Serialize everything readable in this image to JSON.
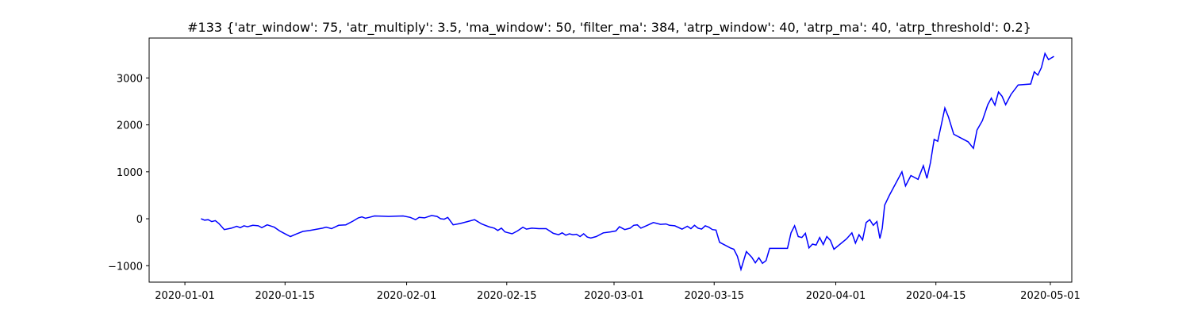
{
  "chart_data": {
    "type": "line",
    "title": "#133 {'atr_window': 75, 'atr_multiply': 3.5, 'ma_window': 50, 'filter_ma': 384, 'atrp_window': 40, 'atrp_ma': 40, 'atrp_threshold': 0.2}",
    "xlabel": "",
    "ylabel": "",
    "x_axis": {
      "type": "date",
      "range": [
        "2019-12-27",
        "2020-05-04"
      ],
      "ticks": [
        "2020-01-01",
        "2020-01-15",
        "2020-02-01",
        "2020-02-15",
        "2020-03-01",
        "2020-03-15",
        "2020-04-01",
        "2020-04-15",
        "2020-05-01"
      ]
    },
    "y_axis": {
      "range": [
        -1350,
        3850
      ],
      "ticks": [
        -1000,
        0,
        1000,
        2000,
        3000
      ]
    },
    "grid": false,
    "series": [
      {
        "color": "#0000ff",
        "points": [
          [
            "2020-01-03",
            0
          ],
          [
            "2020-01-03",
            -30
          ],
          [
            "2020-01-04",
            -20
          ],
          [
            "2020-01-04",
            -60
          ],
          [
            "2020-01-05",
            -40
          ],
          [
            "2020-01-05",
            -100
          ],
          [
            "2020-01-06",
            -230
          ],
          [
            "2020-01-07",
            -200
          ],
          [
            "2020-01-08",
            -160
          ],
          [
            "2020-01-08",
            -190
          ],
          [
            "2020-01-09",
            -150
          ],
          [
            "2020-01-09",
            -170
          ],
          [
            "2020-01-10",
            -140
          ],
          [
            "2020-01-11",
            -150
          ],
          [
            "2020-01-11",
            -190
          ],
          [
            "2020-01-12",
            -130
          ],
          [
            "2020-01-13",
            -180
          ],
          [
            "2020-01-14",
            -260
          ],
          [
            "2020-01-14",
            -300
          ],
          [
            "2020-01-15",
            -340
          ],
          [
            "2020-01-15",
            -380
          ],
          [
            "2020-01-16",
            -330
          ],
          [
            "2020-01-17",
            -270
          ],
          [
            "2020-01-18",
            -250
          ],
          [
            "2020-01-20",
            -200
          ],
          [
            "2020-01-20",
            -180
          ],
          [
            "2020-01-21",
            -210
          ],
          [
            "2020-01-22",
            -140
          ],
          [
            "2020-01-23",
            -130
          ],
          [
            "2020-01-24",
            -50
          ],
          [
            "2020-01-25",
            20
          ],
          [
            "2020-01-25",
            40
          ],
          [
            "2020-01-26",
            10
          ],
          [
            "2020-01-26",
            30
          ],
          [
            "2020-01-27",
            60
          ],
          [
            "2020-01-28",
            55
          ],
          [
            "2020-01-29",
            50
          ],
          [
            "2020-01-30",
            55
          ],
          [
            "2020-01-31",
            60
          ],
          [
            "2020-02-01",
            30
          ],
          [
            "2020-02-02",
            -20
          ],
          [
            "2020-02-02",
            30
          ],
          [
            "2020-02-03",
            20
          ],
          [
            "2020-02-04",
            70
          ],
          [
            "2020-02-05",
            50
          ],
          [
            "2020-02-05",
            0
          ],
          [
            "2020-02-06",
            -10
          ],
          [
            "2020-02-06",
            30
          ],
          [
            "2020-02-07",
            -130
          ],
          [
            "2020-02-08",
            -100
          ],
          [
            "2020-02-09",
            -60
          ],
          [
            "2020-02-10",
            -20
          ],
          [
            "2020-02-11",
            -110
          ],
          [
            "2020-02-12",
            -170
          ],
          [
            "2020-02-13",
            -200
          ],
          [
            "2020-02-13",
            -250
          ],
          [
            "2020-02-14",
            -200
          ],
          [
            "2020-02-14",
            -280
          ],
          [
            "2020-02-15",
            -300
          ],
          [
            "2020-02-15",
            -320
          ],
          [
            "2020-02-16",
            -260
          ],
          [
            "2020-02-17",
            -180
          ],
          [
            "2020-02-17",
            -220
          ],
          [
            "2020-02-18",
            -200
          ],
          [
            "2020-02-19",
            -210
          ],
          [
            "2020-02-20",
            -210
          ],
          [
            "2020-02-21",
            -310
          ],
          [
            "2020-02-22",
            -340
          ],
          [
            "2020-02-22",
            -300
          ],
          [
            "2020-02-23",
            -350
          ],
          [
            "2020-02-23",
            -320
          ],
          [
            "2020-02-24",
            -340
          ],
          [
            "2020-02-24",
            -330
          ],
          [
            "2020-02-25",
            -380
          ],
          [
            "2020-02-25",
            -320
          ],
          [
            "2020-02-26",
            -390
          ],
          [
            "2020-02-26",
            -410
          ],
          [
            "2020-02-27",
            -380
          ],
          [
            "2020-02-28",
            -300
          ],
          [
            "2020-02-29",
            -280
          ],
          [
            "2020-03-01",
            -260
          ],
          [
            "2020-03-01",
            -170
          ],
          [
            "2020-03-02",
            -230
          ],
          [
            "2020-03-03",
            -200
          ],
          [
            "2020-03-03",
            -140
          ],
          [
            "2020-03-04",
            -130
          ],
          [
            "2020-03-04",
            -200
          ],
          [
            "2020-03-05",
            -150
          ],
          [
            "2020-03-06",
            -80
          ],
          [
            "2020-03-07",
            -120
          ],
          [
            "2020-03-08",
            -110
          ],
          [
            "2020-03-08",
            -140
          ],
          [
            "2020-03-09",
            -150
          ],
          [
            "2020-03-10",
            -220
          ],
          [
            "2020-03-11",
            -160
          ],
          [
            "2020-03-11",
            -210
          ],
          [
            "2020-03-12",
            -140
          ],
          [
            "2020-03-12",
            -200
          ],
          [
            "2020-03-13",
            -220
          ],
          [
            "2020-03-13",
            -150
          ],
          [
            "2020-03-14",
            -180
          ],
          [
            "2020-03-14",
            -230
          ],
          [
            "2020-03-15",
            -240
          ],
          [
            "2020-03-15",
            -500
          ],
          [
            "2020-03-16",
            -560
          ],
          [
            "2020-03-17",
            -620
          ],
          [
            "2020-03-17",
            -650
          ],
          [
            "2020-03-18",
            -800
          ],
          [
            "2020-03-18",
            -1080
          ],
          [
            "2020-03-19",
            -700
          ],
          [
            "2020-03-20",
            -820
          ],
          [
            "2020-03-20",
            -940
          ],
          [
            "2020-03-21",
            -830
          ],
          [
            "2020-03-21",
            -950
          ],
          [
            "2020-03-22",
            -890
          ],
          [
            "2020-03-22",
            -630
          ],
          [
            "2020-03-25",
            -630
          ],
          [
            "2020-03-25",
            -300
          ],
          [
            "2020-03-26",
            -150
          ],
          [
            "2020-03-26",
            -380
          ],
          [
            "2020-03-27",
            -400
          ],
          [
            "2020-03-27",
            -310
          ],
          [
            "2020-03-28",
            -620
          ],
          [
            "2020-03-28",
            -540
          ],
          [
            "2020-03-29",
            -560
          ],
          [
            "2020-03-29",
            -400
          ],
          [
            "2020-03-30",
            -550
          ],
          [
            "2020-03-30",
            -380
          ],
          [
            "2020-03-31",
            -460
          ],
          [
            "2020-03-31",
            -650
          ],
          [
            "2020-04-02",
            -430
          ],
          [
            "2020-04-03",
            -300
          ],
          [
            "2020-04-03",
            -520
          ],
          [
            "2020-04-04",
            -340
          ],
          [
            "2020-04-04",
            -450
          ],
          [
            "2020-04-05",
            -80
          ],
          [
            "2020-04-05",
            -20
          ],
          [
            "2020-04-06",
            -140
          ],
          [
            "2020-04-06",
            -60
          ],
          [
            "2020-04-07",
            -420
          ],
          [
            "2020-04-07",
            -200
          ],
          [
            "2020-04-07",
            290
          ],
          [
            "2020-04-08",
            500
          ],
          [
            "2020-04-10",
            1000
          ],
          [
            "2020-04-10",
            700
          ],
          [
            "2020-04-11",
            920
          ],
          [
            "2020-04-12",
            840
          ],
          [
            "2020-04-13",
            1130
          ],
          [
            "2020-04-13",
            860
          ],
          [
            "2020-04-14",
            1200
          ],
          [
            "2020-04-14",
            1690
          ],
          [
            "2020-04-15",
            1650
          ],
          [
            "2020-04-15",
            2000
          ],
          [
            "2020-04-16",
            2360
          ],
          [
            "2020-04-16",
            2170
          ],
          [
            "2020-04-17",
            1800
          ],
          [
            "2020-04-18",
            1720
          ],
          [
            "2020-04-19",
            1640
          ],
          [
            "2020-04-20",
            1500
          ],
          [
            "2020-04-20",
            1890
          ],
          [
            "2020-04-21",
            2090
          ],
          [
            "2020-04-22",
            2430
          ],
          [
            "2020-04-22",
            2570
          ],
          [
            "2020-04-23",
            2420
          ],
          [
            "2020-04-23",
            2700
          ],
          [
            "2020-04-24",
            2610
          ],
          [
            "2020-04-24",
            2430
          ],
          [
            "2020-04-25",
            2650
          ],
          [
            "2020-04-26",
            2850
          ],
          [
            "2020-04-28",
            2870
          ],
          [
            "2020-04-28",
            3130
          ],
          [
            "2020-04-29",
            3060
          ],
          [
            "2020-04-29",
            3220
          ],
          [
            "2020-04-30",
            3520
          ],
          [
            "2020-04-30",
            3390
          ],
          [
            "2020-05-01",
            3460
          ]
        ]
      }
    ]
  }
}
